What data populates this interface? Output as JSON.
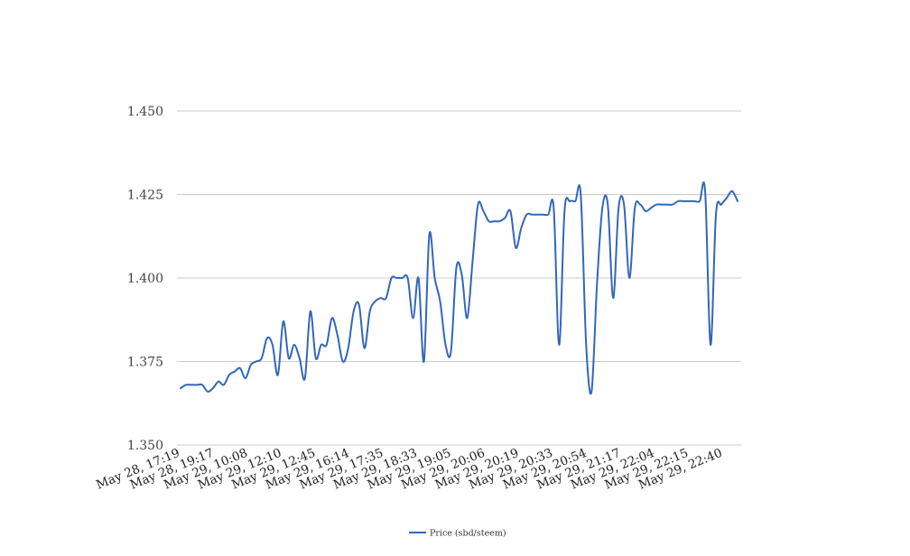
{
  "chart_data": {
    "type": "line",
    "title": "",
    "xlabel": "",
    "ylabel": "",
    "ylim": [
      1.35,
      1.45
    ],
    "yticks": [
      "1.350",
      "1.375",
      "1.400",
      "1.425",
      "1.450"
    ],
    "grid": true,
    "legend_position": "bottom",
    "x_tick_labels": [
      "May 28, 17:19",
      "May 28, 19:17",
      "May 29, 10:08",
      "May 29, 12:10",
      "May 29, 12:45",
      "May 29, 16:14",
      "May 29, 17:35",
      "May 29, 18:33",
      "May 29, 19:05",
      "May 29, 20:06",
      "May 29, 20:19",
      "May 29, 20:33",
      "May 29, 20:54",
      "May 29, 21:17",
      "May 29, 22:04",
      "May 29, 22:15",
      "May 29, 22:40"
    ],
    "series": [
      {
        "name": "Price (sbd/steem)",
        "color": "#3366bb",
        "values": [
          1.367,
          1.368,
          1.368,
          1.368,
          1.368,
          1.366,
          1.367,
          1.369,
          1.368,
          1.371,
          1.372,
          1.373,
          1.37,
          1.374,
          1.375,
          1.376,
          1.382,
          1.38,
          1.371,
          1.387,
          1.376,
          1.38,
          1.376,
          1.37,
          1.39,
          1.376,
          1.38,
          1.38,
          1.388,
          1.383,
          1.375,
          1.379,
          1.39,
          1.392,
          1.379,
          1.39,
          1.393,
          1.394,
          1.394,
          1.4,
          1.4,
          1.4,
          1.4,
          1.388,
          1.4,
          1.375,
          1.413,
          1.4,
          1.393,
          1.38,
          1.378,
          1.403,
          1.401,
          1.388,
          1.405,
          1.422,
          1.42,
          1.417,
          1.417,
          1.417,
          1.418,
          1.42,
          1.409,
          1.415,
          1.419,
          1.419,
          1.419,
          1.419,
          1.419,
          1.421,
          1.38,
          1.42,
          1.423,
          1.423,
          1.425,
          1.38,
          1.366,
          1.398,
          1.421,
          1.422,
          1.394,
          1.421,
          1.422,
          1.4,
          1.421,
          1.422,
          1.42,
          1.421,
          1.422,
          1.422,
          1.422,
          1.422,
          1.423,
          1.423,
          1.423,
          1.423,
          1.423,
          1.426,
          1.38,
          1.419,
          1.422,
          1.424,
          1.426,
          1.423
        ]
      }
    ]
  }
}
